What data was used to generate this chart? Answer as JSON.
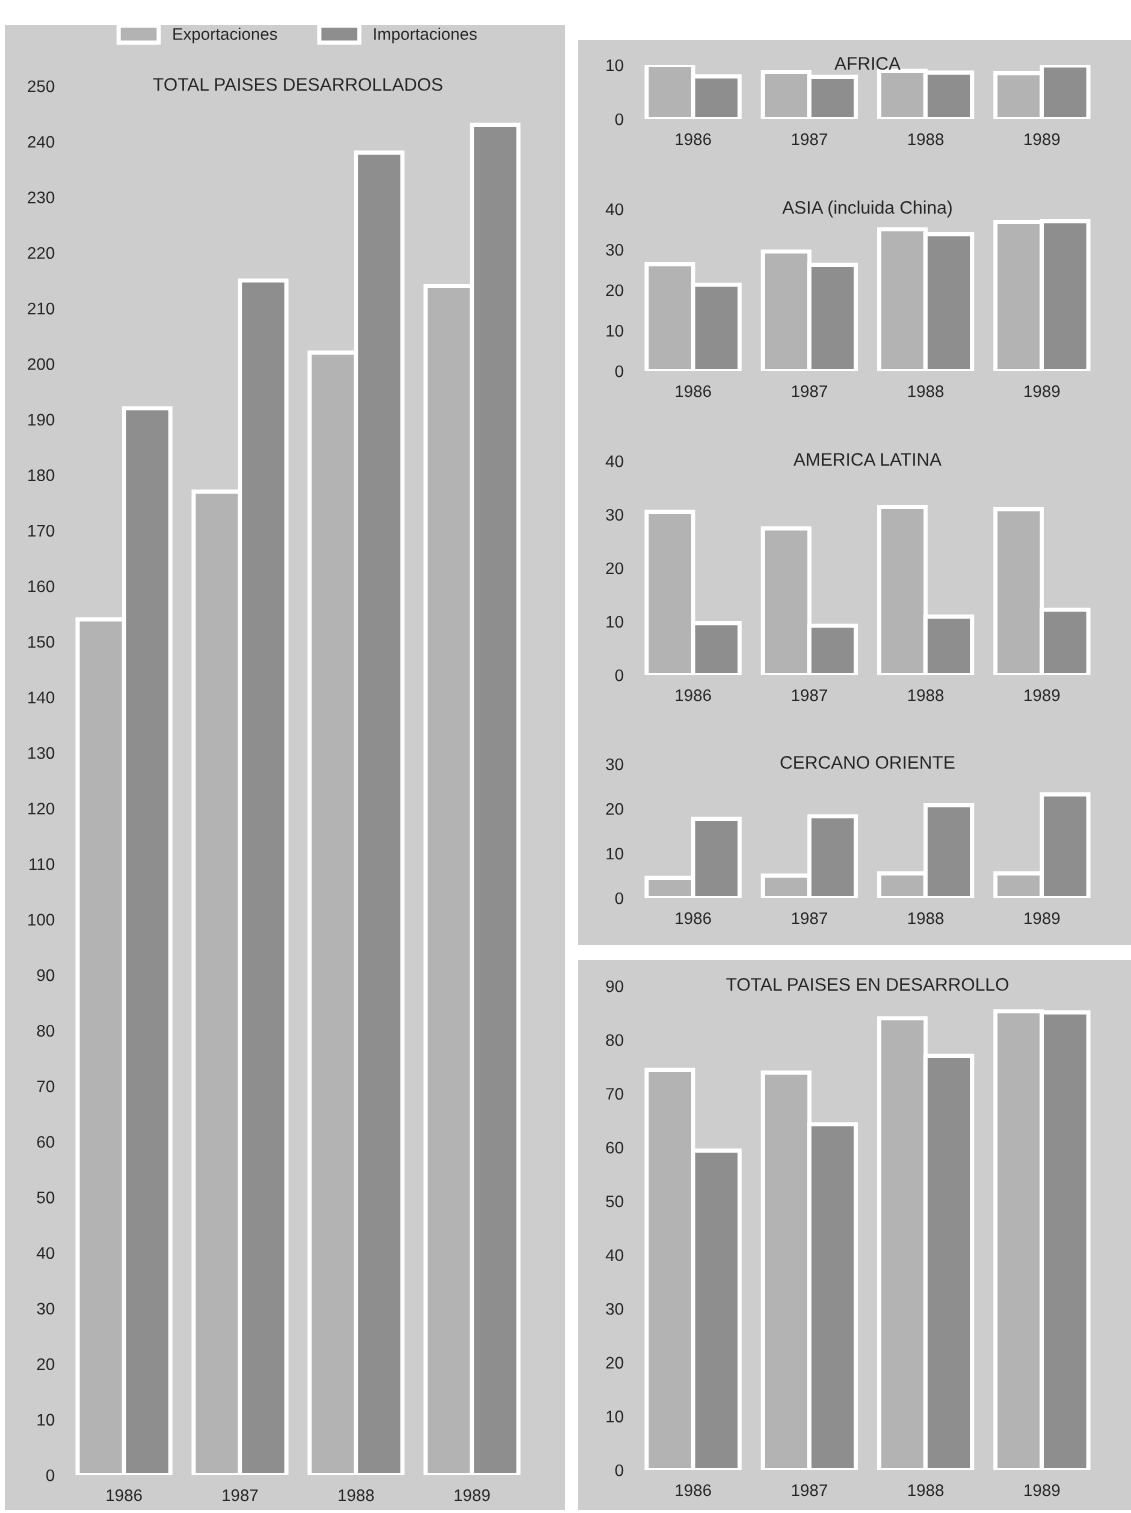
{
  "chart_data": [
    {
      "type": "bar",
      "title": "TOTAL PAISES DESARROLLADOS",
      "categories": [
        "1986",
        "1987",
        "1988",
        "1989"
      ],
      "legend": "top",
      "ylim": [
        0,
        250
      ],
      "yticks": [
        0,
        10,
        20,
        30,
        40,
        50,
        60,
        70,
        80,
        90,
        100,
        110,
        120,
        130,
        140,
        150,
        160,
        170,
        180,
        190,
        200,
        210,
        220,
        230,
        240,
        250
      ],
      "series": [
        {
          "name": "Exportaciones",
          "color": "#b3b3b3",
          "values": [
            154,
            177,
            202,
            214
          ]
        },
        {
          "name": "Importaciones",
          "color": "#8e8e8e",
          "values": [
            192,
            215,
            238,
            243
          ]
        }
      ]
    },
    {
      "type": "bar",
      "title": "AFRICA",
      "categories": [
        "1986",
        "1987",
        "1988",
        "1989"
      ],
      "ylim": [
        0,
        10
      ],
      "yticks": [
        0,
        10
      ],
      "series": [
        {
          "color": "#b3b3b3",
          "values": [
            10,
            8.7,
            8.9,
            8.5
          ]
        },
        {
          "color": "#8e8e8e",
          "values": [
            7.9,
            7.8,
            8.6,
            9.9
          ]
        }
      ]
    },
    {
      "type": "bar",
      "title": "ASIA (incluida China)",
      "categories": [
        "1986",
        "1987",
        "1988",
        "1989"
      ],
      "ylim": [
        0,
        40
      ],
      "yticks": [
        0,
        10,
        20,
        30,
        40
      ],
      "series": [
        {
          "color": "#b3b3b3",
          "values": [
            26.4,
            29.5,
            35,
            36.8
          ]
        },
        {
          "color": "#8e8e8e",
          "values": [
            21.3,
            26.2,
            33.8,
            37
          ]
        }
      ]
    },
    {
      "type": "bar",
      "title": "AMERICA LATINA",
      "categories": [
        "1986",
        "1987",
        "1988",
        "1989"
      ],
      "ylim": [
        0,
        40
      ],
      "yticks": [
        0,
        10,
        20,
        30,
        40
      ],
      "series": [
        {
          "color": "#b3b3b3",
          "values": [
            30.5,
            27.4,
            31.4,
            31
          ]
        },
        {
          "color": "#8e8e8e",
          "values": [
            9.7,
            9.2,
            10.9,
            12.2
          ]
        }
      ]
    },
    {
      "type": "bar",
      "title": "CERCANO ORIENTE",
      "categories": [
        "1986",
        "1987",
        "1988",
        "1989"
      ],
      "ylim": [
        0,
        30
      ],
      "yticks": [
        0,
        10,
        20,
        30
      ],
      "series": [
        {
          "color": "#b3b3b3",
          "values": [
            4.5,
            5,
            5.5,
            5.5
          ]
        },
        {
          "color": "#8e8e8e",
          "values": [
            17.7,
            18.3,
            20.8,
            23.2
          ]
        }
      ]
    },
    {
      "type": "bar",
      "title": "TOTAL PAISES EN DESARROLLO",
      "categories": [
        "1986",
        "1987",
        "1988",
        "1989"
      ],
      "ylim": [
        0,
        90
      ],
      "yticks": [
        0,
        10,
        20,
        30,
        40,
        50,
        60,
        70,
        80,
        90
      ],
      "series": [
        {
          "color": "#b3b3b3",
          "values": [
            74.4,
            73.9,
            84,
            85.3
          ]
        },
        {
          "color": "#8e8e8e",
          "values": [
            59.4,
            64.3,
            77,
            85.1
          ]
        }
      ]
    }
  ]
}
